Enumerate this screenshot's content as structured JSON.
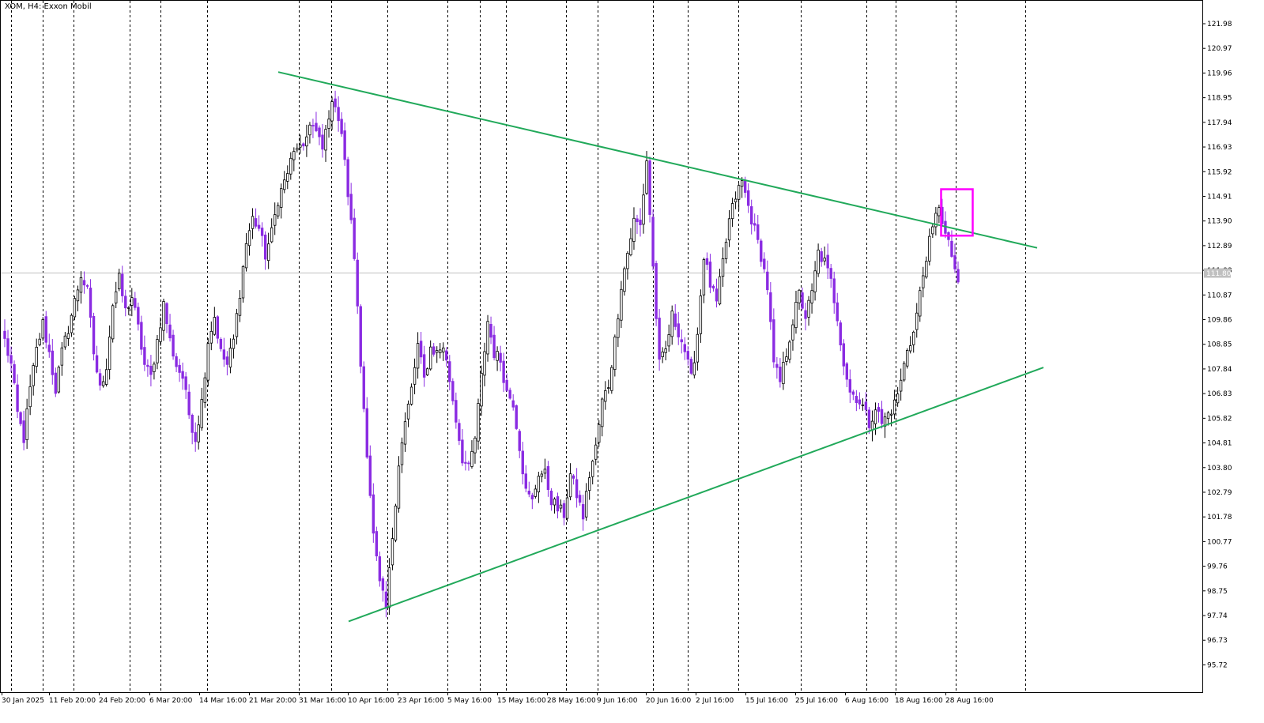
{
  "chart_title": "XOM, H4:  Exxon Mobil",
  "chart_data": {
    "type": "candlestick",
    "title": "XOM, H4:  Exxon Mobil",
    "ylim": [
      94.8,
      122.9
    ],
    "y_ticks": [
      "121.98",
      "120.97",
      "119.96",
      "118.95",
      "117.94",
      "116.93",
      "115.92",
      "114.91",
      "113.90",
      "112.89",
      "111.88",
      "110.87",
      "109.86",
      "108.85",
      "107.84",
      "106.83",
      "105.82",
      "104.81",
      "103.80",
      "102.79",
      "101.78",
      "100.77",
      "99.76",
      "98.75",
      "97.74",
      "96.73",
      "95.72"
    ],
    "x_tick_labels": [
      "30 Jan 2025",
      "11 Feb 20:00",
      "24 Feb 20:00",
      "6 Mar 20:00",
      "14 Mar 16:00",
      "21 Mar 20:00",
      "31 Mar 16:00",
      "10 Apr 16:00",
      "23 Apr 16:00",
      "5 May 16:00",
      "15 May 16:00",
      "28 May 16:00",
      "9 Jun 16:00",
      "20 Jun 16:00",
      "2 Jul 16:00",
      "15 Jul 16:00",
      "25 Jul 16:00",
      "6 Aug 16:00",
      "18 Aug 16:00",
      "28 Aug 16:00"
    ],
    "current_price": "111.80",
    "grid": "vertical-dotted",
    "bull_color": "#ffffff",
    "bear_color": "#8a2be2",
    "wick_color": "#000000",
    "trendline_color": "#21a95a",
    "highlight_box_color": "#ff00ff",
    "trendlines": [
      {
        "name": "upper-resistance",
        "from": {
          "date": "1 Apr 2025",
          "price": 120.0
        },
        "to": {
          "date": "18 Sep 2025",
          "price": 112.8
        }
      },
      {
        "name": "lower-support",
        "from": {
          "date": "9 Apr 2025",
          "price": 97.5
        },
        "to": {
          "date": "19 Sep 2025",
          "price": 107.9
        }
      }
    ],
    "highlight_box": {
      "from": "27 Aug 2025",
      "to": "29 Aug 2025",
      "high": 115.2,
      "low": 113.3
    },
    "candles_path": [
      [
        2,
        109
      ],
      [
        4,
        108
      ],
      [
        6,
        106
      ],
      [
        8,
        105
      ],
      [
        10,
        107
      ],
      [
        12,
        108.6
      ],
      [
        14,
        109.7
      ],
      [
        16,
        108.5
      ],
      [
        18,
        107
      ],
      [
        20,
        108.5
      ],
      [
        22,
        109.5
      ],
      [
        24,
        110.6
      ],
      [
        26,
        111.7
      ],
      [
        28,
        111
      ],
      [
        30,
        108.5
      ],
      [
        32,
        107
      ],
      [
        34,
        108
      ],
      [
        36,
        110.5
      ],
      [
        38,
        111.5
      ],
      [
        40,
        110.2
      ],
      [
        42,
        110.8
      ],
      [
        44,
        109.5
      ],
      [
        46,
        108
      ],
      [
        48,
        107.5
      ],
      [
        50,
        109
      ],
      [
        52,
        110.5
      ],
      [
        54,
        109
      ],
      [
        56,
        108
      ],
      [
        58,
        107.5
      ],
      [
        60,
        106
      ],
      [
        62,
        105
      ],
      [
        64,
        106.5
      ],
      [
        66,
        109
      ],
      [
        68,
        110
      ],
      [
        70,
        108.5
      ],
      [
        72,
        108
      ],
      [
        74,
        109
      ],
      [
        76,
        111
      ],
      [
        78,
        113
      ],
      [
        80,
        114
      ],
      [
        82,
        113.6
      ],
      [
        84,
        112.5
      ],
      [
        86,
        113.4
      ],
      [
        88,
        114.8
      ],
      [
        90,
        115.5
      ],
      [
        92,
        116.3
      ],
      [
        94,
        117
      ],
      [
        96,
        116.7
      ],
      [
        98,
        118
      ],
      [
        100,
        117.5
      ],
      [
        102,
        116.8
      ],
      [
        104,
        118.3
      ],
      [
        106,
        118.8
      ],
      [
        108,
        117.5
      ],
      [
        110,
        115
      ],
      [
        112,
        112.5
      ],
      [
        114,
        108
      ],
      [
        116,
        104.5
      ],
      [
        118,
        101
      ],
      [
        120,
        99
      ],
      [
        122,
        98
      ],
      [
        124,
        101
      ],
      [
        126,
        104
      ],
      [
        128,
        105.6
      ],
      [
        130,
        107
      ],
      [
        132,
        108.8
      ],
      [
        134,
        107.4
      ],
      [
        136,
        108.7
      ],
      [
        138,
        108.5
      ],
      [
        140,
        108.8
      ],
      [
        142,
        107.4
      ],
      [
        144,
        105.8
      ],
      [
        146,
        104.2
      ],
      [
        148,
        103.7
      ],
      [
        150,
        105
      ],
      [
        152,
        107.5
      ],
      [
        154,
        109.8
      ],
      [
        156,
        108.5
      ],
      [
        158,
        108.2
      ],
      [
        160,
        106.9
      ],
      [
        162,
        106.5
      ],
      [
        164,
        104.7
      ],
      [
        166,
        102.8
      ],
      [
        168,
        102.4
      ],
      [
        170,
        103.6
      ],
      [
        172,
        103.5
      ],
      [
        174,
        102.5
      ],
      [
        176,
        102.1
      ],
      [
        178,
        101.9
      ],
      [
        180,
        103.5
      ],
      [
        182,
        102.7
      ],
      [
        184,
        101.8
      ],
      [
        186,
        103.5
      ],
      [
        188,
        104.6
      ],
      [
        190,
        106.5
      ],
      [
        192,
        107.2
      ],
      [
        194,
        109
      ],
      [
        196,
        111.3
      ],
      [
        198,
        112.6
      ],
      [
        200,
        113.9
      ],
      [
        202,
        113.7
      ],
      [
        204,
        116.4
      ],
      [
        206,
        112
      ],
      [
        208,
        108
      ],
      [
        210,
        108.6
      ],
      [
        212,
        110
      ],
      [
        214,
        109.4
      ],
      [
        216,
        108.6
      ],
      [
        218,
        107.4
      ],
      [
        220,
        109.3
      ],
      [
        222,
        112.5
      ],
      [
        224,
        111.3
      ],
      [
        226,
        110.5
      ],
      [
        228,
        112.2
      ],
      [
        230,
        113.9
      ],
      [
        232,
        114.9
      ],
      [
        234,
        115.5
      ],
      [
        236,
        114.5
      ],
      [
        238,
        113.5
      ],
      [
        240,
        112.5
      ],
      [
        242,
        111.2
      ],
      [
        244,
        108
      ],
      [
        246,
        107.3
      ],
      [
        248,
        108.5
      ],
      [
        250,
        109.8
      ],
      [
        252,
        110.9
      ],
      [
        254,
        110
      ],
      [
        256,
        110.9
      ],
      [
        258,
        112.6
      ],
      [
        260,
        112.2
      ],
      [
        262,
        111.4
      ],
      [
        264,
        110
      ],
      [
        266,
        108.1
      ],
      [
        268,
        106.9
      ],
      [
        270,
        106.7
      ],
      [
        272,
        106.3
      ],
      [
        274,
        105.6
      ],
      [
        276,
        106.3
      ],
      [
        278,
        105.6
      ],
      [
        280,
        106
      ],
      [
        282,
        106.4
      ],
      [
        284,
        107.3
      ],
      [
        286,
        108.7
      ],
      [
        288,
        109.3
      ],
      [
        290,
        110.9
      ],
      [
        292,
        112.5
      ],
      [
        294,
        113.5
      ],
      [
        296,
        114.6
      ],
      [
        298,
        113.3
      ],
      [
        300,
        112.5
      ],
      [
        302,
        111.4
      ]
    ]
  }
}
